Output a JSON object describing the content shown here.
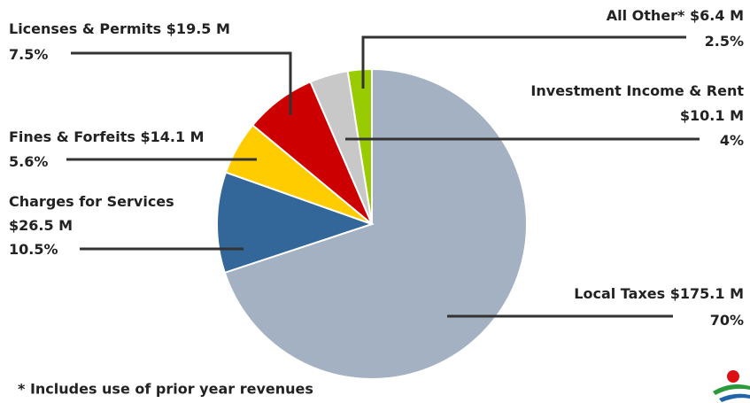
{
  "chart_data": {
    "type": "pie",
    "categories": [
      "Local Taxes",
      "Charges for Services",
      "Fines & Forfeits",
      "Licenses & Permits",
      "Investment Income & Rent",
      "All Other*"
    ],
    "values": [
      70,
      10.5,
      5.6,
      7.5,
      4,
      2.5
    ],
    "value_labels": [
      "70%",
      "10.5%",
      "5.6%",
      "7.5%",
      "4%",
      "2.5%"
    ],
    "amount_labels": [
      "$175.1 M",
      "$26.5 M",
      "$14.1 M",
      "$19.5 M",
      "$10.1 M",
      "$6.4 M"
    ],
    "colors": [
      "#a3b1c2",
      "#336699",
      "#ffcc00",
      "#cc0000",
      "#c8c8c8",
      "#99cc00"
    ],
    "footnote": "* Includes use of prior year revenues"
  }
}
